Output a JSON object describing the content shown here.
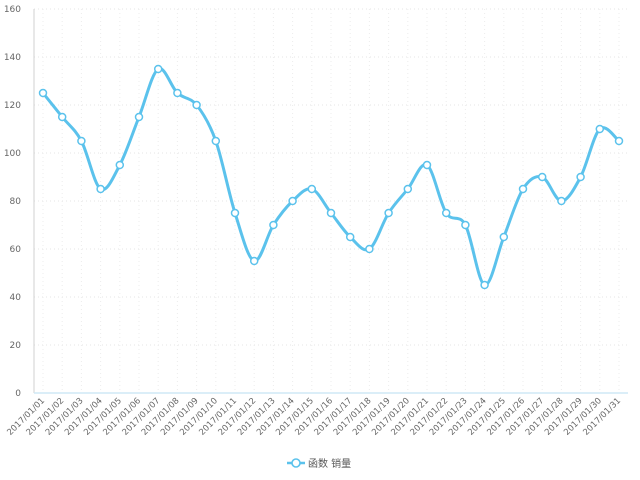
{
  "chart_data": {
    "type": "line",
    "smooth": true,
    "categories": [
      "2017/01/01",
      "2017/01/02",
      "2017/01/03",
      "2017/01/04",
      "2017/01/05",
      "2017/01/06",
      "2017/01/07",
      "2017/01/08",
      "2017/01/09",
      "2017/01/10",
      "2017/01/11",
      "2017/01/12",
      "2017/01/13",
      "2017/01/14",
      "2017/01/15",
      "2017/01/16",
      "2017/01/17",
      "2017/01/18",
      "2017/01/19",
      "2017/01/20",
      "2017/01/21",
      "2017/01/22",
      "2017/01/23",
      "2017/01/24",
      "2017/01/25",
      "2017/01/26",
      "2017/01/27",
      "2017/01/28",
      "2017/01/29",
      "2017/01/30",
      "2017/01/31"
    ],
    "series": [
      {
        "name": "函数 销量",
        "color": "#5bc2ec",
        "values": [
          125,
          115,
          105,
          85,
          95,
          115,
          135,
          125,
          120,
          105,
          75,
          55,
          70,
          80,
          85,
          75,
          65,
          60,
          75,
          85,
          95,
          75,
          70,
          45,
          65,
          85,
          90,
          80,
          90,
          110,
          105
        ]
      }
    ],
    "ylim": [
      0,
      160
    ],
    "yticks": [
      0,
      20,
      40,
      60,
      80,
      100,
      120,
      140,
      160
    ],
    "grid": true,
    "legend_position": "bottom-center",
    "xlabel": "",
    "ylabel": "",
    "title": ""
  }
}
